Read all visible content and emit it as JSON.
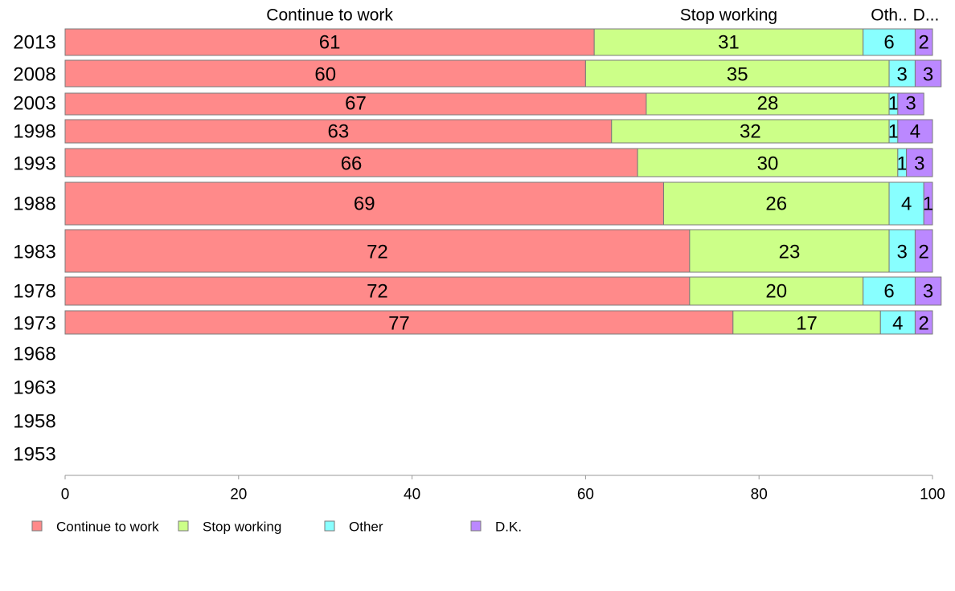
{
  "chart_data": {
    "type": "bar",
    "orientation": "horizontal",
    "stacked": true,
    "title": "",
    "xlabel": "",
    "ylabel": "",
    "xlim": [
      0,
      100
    ],
    "x_ticks": [
      "0",
      "20",
      "40",
      "60",
      "80",
      "100"
    ],
    "categories": [
      "2013",
      "2008",
      "2003",
      "1998",
      "1993",
      "1988",
      "1983",
      "1978",
      "1973",
      "1968",
      "1963",
      "1958",
      "1953"
    ],
    "series": [
      {
        "name": "Continue to work",
        "color": "#ff8a8a",
        "values": [
          61,
          60,
          67,
          63,
          66,
          69,
          72,
          72,
          77,
          null,
          null,
          null,
          null
        ]
      },
      {
        "name": "Stop working",
        "color": "#ccff88",
        "values": [
          31,
          35,
          28,
          32,
          30,
          26,
          23,
          20,
          17,
          null,
          null,
          null,
          null
        ]
      },
      {
        "name": "Other",
        "color": "#88ffff",
        "values": [
          6,
          3,
          1,
          1,
          1,
          4,
          3,
          6,
          4,
          null,
          null,
          null,
          null
        ]
      },
      {
        "name": "D.K.",
        "color": "#bb88ff",
        "values": [
          2,
          3,
          3,
          4,
          3,
          1,
          2,
          3,
          2,
          null,
          null,
          null,
          null
        ]
      }
    ],
    "top_labels": [
      "Continue to work",
      "Stop working",
      "Oth..",
      "D..."
    ],
    "legend_labels": [
      "Continue to work",
      "Stop working",
      "Other",
      "D.K."
    ],
    "legend_position": "bottom-left",
    "grid": false
  }
}
